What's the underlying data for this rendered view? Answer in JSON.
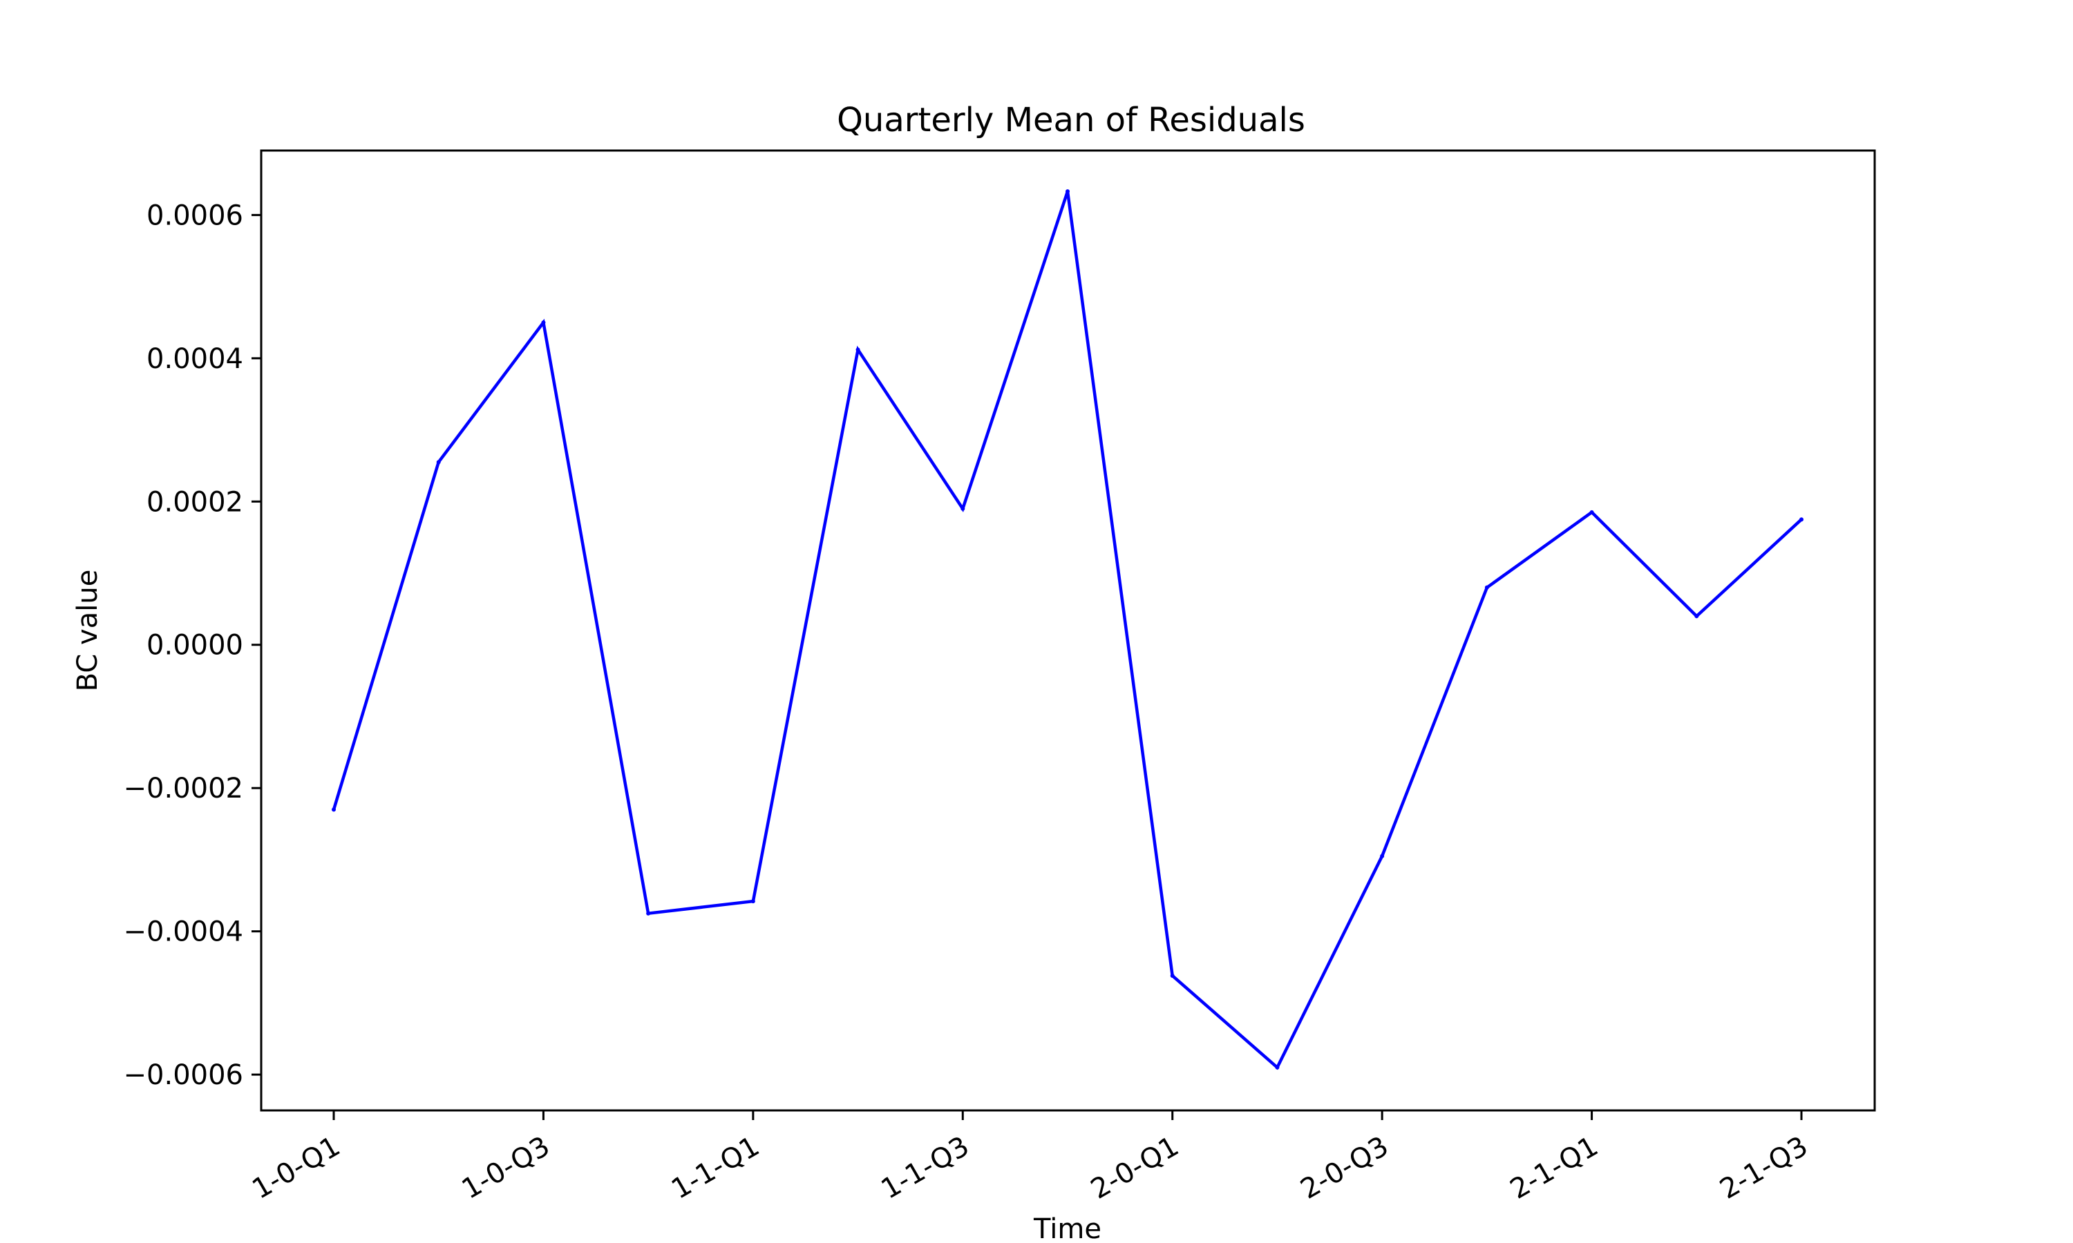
{
  "chart_data": {
    "type": "line",
    "title": "Quarterly Mean of Residuals",
    "xlabel": "Time",
    "ylabel": "BC value",
    "categories": [
      "1-0-Q1",
      "1-0-Q2",
      "1-0-Q3",
      "1-0-Q4",
      "1-1-Q1",
      "1-1-Q2",
      "1-1-Q3",
      "1-1-Q4",
      "2-0-Q1",
      "2-0-Q2",
      "2-0-Q3",
      "2-0-Q4",
      "2-1-Q1",
      "2-1-Q2",
      "2-1-Q3"
    ],
    "x_tick_labels": [
      "1-0-Q1",
      "1-0-Q3",
      "1-1-Q1",
      "1-1-Q3",
      "2-0-Q1",
      "2-0-Q3",
      "2-1-Q1",
      "2-1-Q3"
    ],
    "y_ticks": [
      -0.0006,
      -0.0004,
      -0.0002,
      0.0,
      0.0002,
      0.0004,
      0.0006
    ],
    "y_tick_labels": [
      "−0.0006",
      "−0.0004",
      "−0.0002",
      "0.0000",
      "0.0002",
      "0.0004",
      "0.0006"
    ],
    "ylim": [
      -0.00065,
      0.00069
    ],
    "grid": false,
    "series": [
      {
        "values": [
          -0.00023,
          0.000255,
          0.00045,
          -0.000375,
          -0.000358,
          0.000412,
          0.00019,
          0.000633,
          -0.000462,
          -0.00059,
          -0.000295,
          8e-05,
          0.000185,
          4e-05,
          0.000175
        ],
        "color": "#0000ff"
      }
    ]
  }
}
